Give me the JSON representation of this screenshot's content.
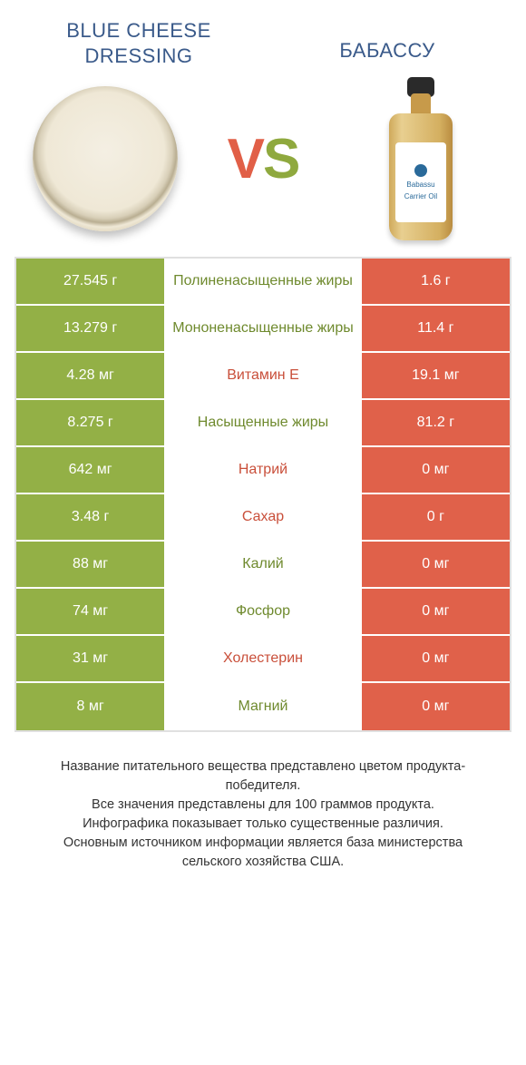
{
  "colors": {
    "green": "#93b046",
    "orange": "#e0614a",
    "green_text": "#6f8a2e",
    "orange_text": "#c94f3a",
    "title": "#3a5a8a"
  },
  "header": {
    "left_title_line1": "BLUE CHEESE",
    "left_title_line2": "DRESSING",
    "right_title": "БАБАССУ",
    "vs_v": "V",
    "vs_s": "S",
    "bottle_label_1": "Babassu",
    "bottle_label_2": "Carrier Oil"
  },
  "rows": [
    {
      "left": "27.545 г",
      "mid": "Полиненасыщенные жиры",
      "right": "1.6 г",
      "winner": "left"
    },
    {
      "left": "13.279 г",
      "mid": "Мононенасыщенные жиры",
      "right": "11.4 г",
      "winner": "left"
    },
    {
      "left": "4.28 мг",
      "mid": "Витамин E",
      "right": "19.1 мг",
      "winner": "right"
    },
    {
      "left": "8.275 г",
      "mid": "Насыщенные жиры",
      "right": "81.2 г",
      "winner": "left"
    },
    {
      "left": "642 мг",
      "mid": "Натрий",
      "right": "0 мг",
      "winner": "right"
    },
    {
      "left": "3.48 г",
      "mid": "Сахар",
      "right": "0 г",
      "winner": "right"
    },
    {
      "left": "88 мг",
      "mid": "Калий",
      "right": "0 мг",
      "winner": "left"
    },
    {
      "left": "74 мг",
      "mid": "Фосфор",
      "right": "0 мг",
      "winner": "left"
    },
    {
      "left": "31 мг",
      "mid": "Холестерин",
      "right": "0 мг",
      "winner": "right"
    },
    {
      "left": "8 мг",
      "mid": "Магний",
      "right": "0 мг",
      "winner": "left"
    }
  ],
  "footer": {
    "line1": "Название питательного вещества представлено цветом продукта-победителя.",
    "line2": "Все значения представлены для 100 граммов продукта.",
    "line3": "Инфографика показывает только существенные различия.",
    "line4": "Основным источником информации является база министерства сельского хозяйства США."
  }
}
